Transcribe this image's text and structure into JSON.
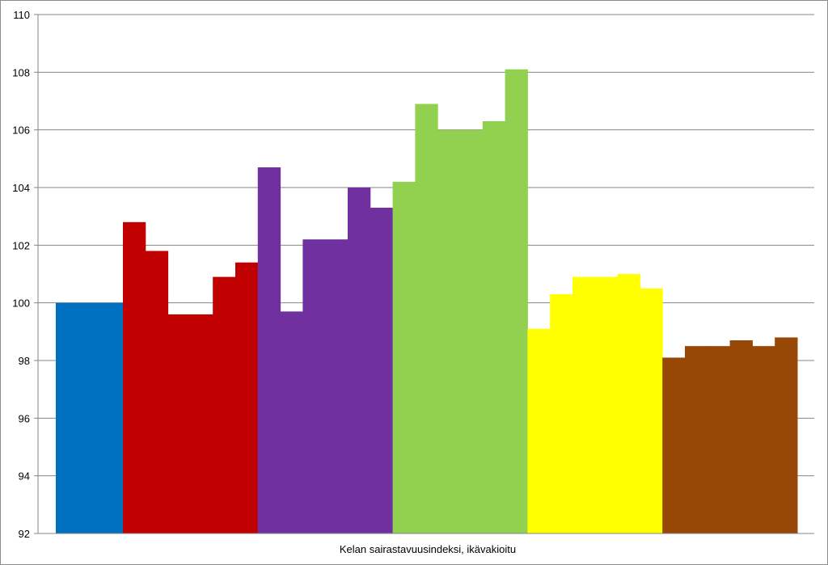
{
  "chart_data": {
    "type": "bar",
    "title": "",
    "xlabel": "Kelan sairastavuusindeksi, ikävakioitu",
    "ylabel": "",
    "ylim": [
      92,
      110
    ],
    "yticks": [
      "92",
      "94",
      "96",
      "98",
      "100",
      "102",
      "104",
      "106",
      "108",
      "110"
    ],
    "grid": true,
    "legend": "none",
    "groups": [
      {
        "color": "#0070C0",
        "values": [
          100.0
        ]
      },
      {
        "color": "#C00000",
        "values": [
          102.8,
          101.8,
          99.6,
          99.6,
          100.9,
          101.4
        ]
      },
      {
        "color": "#7030A0",
        "values": [
          104.7,
          99.7,
          102.2,
          102.2,
          104.0,
          103.3
        ]
      },
      {
        "color": "#92D050",
        "values": [
          104.2,
          106.9,
          106.0,
          106.0,
          106.3,
          108.1
        ]
      },
      {
        "color": "#FFFF00",
        "values": [
          99.1,
          100.3,
          100.9,
          100.9,
          101.0,
          100.5
        ]
      },
      {
        "color": "#974706",
        "values": [
          98.1,
          98.5,
          98.5,
          98.7,
          98.5,
          98.8
        ]
      }
    ]
  }
}
